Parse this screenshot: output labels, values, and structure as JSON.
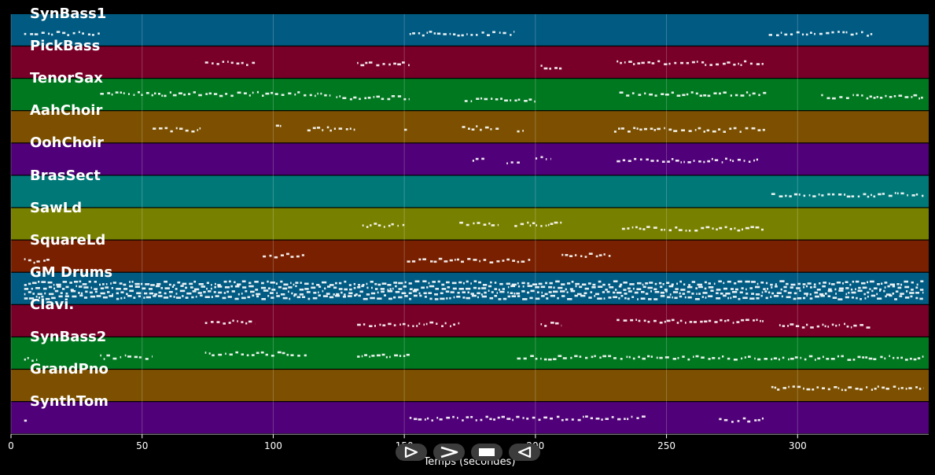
{
  "chart_data": {
    "type": "piano-roll",
    "xlabel": "Temps (secondes)",
    "xlim": [
      0,
      350
    ],
    "xticks": [
      0,
      50,
      100,
      150,
      200,
      250,
      300
    ],
    "grid": true,
    "tracks": [
      {
        "name": "SynBass1",
        "color": "#005a82",
        "segments": [
          [
            5,
            34
          ],
          [
            152,
            192
          ],
          [
            289,
            329
          ]
        ]
      },
      {
        "name": "PickBass",
        "color": "#780028",
        "segments": [
          [
            74,
            93
          ],
          [
            132,
            152
          ],
          [
            202,
            210
          ],
          [
            231,
            287
          ]
        ]
      },
      {
        "name": "TenorSax",
        "color": "#007820",
        "segments": [
          [
            34,
            122
          ],
          [
            124,
            152
          ],
          [
            173,
            200
          ],
          [
            232,
            288
          ],
          [
            309,
            348
          ]
        ]
      },
      {
        "name": "AahChoir",
        "color": "#7c5000",
        "segments": [
          [
            54,
            73
          ],
          [
            101,
            103
          ],
          [
            113,
            132
          ],
          [
            150,
            151
          ],
          [
            172,
            186
          ],
          [
            193,
            196
          ],
          [
            230,
            288
          ]
        ]
      },
      {
        "name": "OohChoir",
        "color": "#500078",
        "segments": [
          [
            176,
            181
          ],
          [
            189,
            194
          ],
          [
            200,
            206
          ],
          [
            231,
            285
          ]
        ]
      },
      {
        "name": "BrasSect",
        "color": "#007878",
        "segments": [
          [
            290,
            348
          ]
        ]
      },
      {
        "name": "SawLd",
        "color": "#788000",
        "segments": [
          [
            134,
            151
          ],
          [
            171,
            186
          ],
          [
            192,
            210
          ],
          [
            233,
            287
          ]
        ]
      },
      {
        "name": "SquareLd",
        "color": "#782000",
        "segments": [
          [
            5,
            15
          ],
          [
            96,
            112
          ],
          [
            151,
            198
          ],
          [
            210,
            229
          ]
        ]
      },
      {
        "name": "GM Drums",
        "color": "#005a82",
        "segments": [
          [
            5,
            348
          ]
        ]
      },
      {
        "name": "Clavi.",
        "color": "#780028",
        "segments": [
          [
            74,
            93
          ],
          [
            132,
            171
          ],
          [
            202,
            210
          ],
          [
            231,
            287
          ],
          [
            293,
            328
          ]
        ]
      },
      {
        "name": "SynBass2",
        "color": "#007820",
        "segments": [
          [
            5,
            10
          ],
          [
            34,
            54
          ],
          [
            74,
            113
          ],
          [
            132,
            152
          ],
          [
            193,
            348
          ]
        ]
      },
      {
        "name": "GrandPno",
        "color": "#7c5000",
        "segments": [
          [
            290,
            348
          ]
        ]
      },
      {
        "name": "SynthTom",
        "color": "#500078",
        "segments": [
          [
            5,
            7
          ],
          [
            152,
            242
          ],
          [
            270,
            287
          ]
        ]
      }
    ]
  },
  "controls": {
    "play_icon": "play-outline-icon",
    "forward_icon": "chevron-right-icon",
    "stop_icon": "stop-icon",
    "rewind_icon": "play-reverse-icon"
  }
}
